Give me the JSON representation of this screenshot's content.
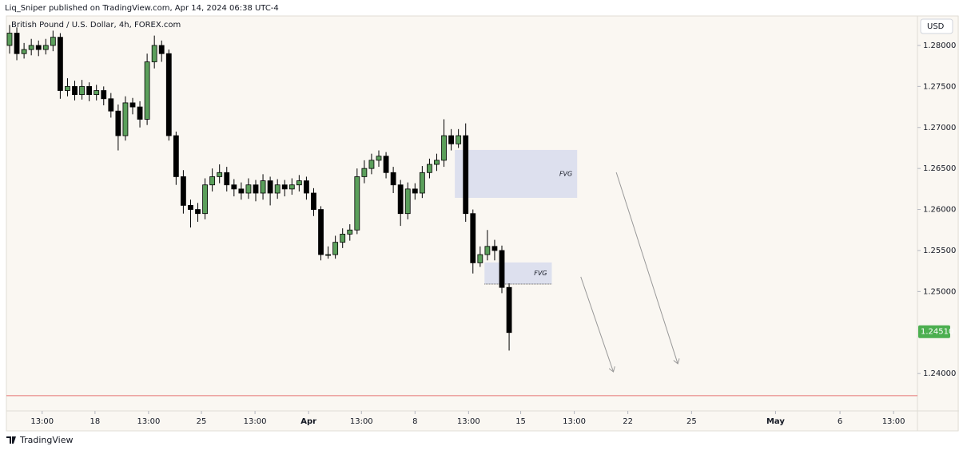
{
  "header": {
    "publisher": "Liq_Sniper published on TradingView.com, Apr 14, 2024 06:38 UTC-4",
    "brand": "TradingView"
  },
  "chart_data": {
    "type": "candlestick",
    "title": "British Pound / U.S. Dollar, 4h, FOREX.com",
    "currency": "USD",
    "up_color": "#5b9f5b",
    "down_color": "#000000",
    "grid": false,
    "open": [
      1.28,
      1.2815,
      1.279,
      1.2795,
      1.28,
      1.2795,
      1.28,
      1.281,
      1.2745,
      1.275,
      1.274,
      1.275,
      1.274,
      1.2745,
      1.2735,
      1.272,
      1.269,
      1.273,
      1.2725,
      1.271,
      1.278,
      1.28,
      1.279,
      1.269,
      1.264,
      1.2605,
      1.26,
      1.2595,
      1.263,
      1.264,
      1.2645,
      1.263,
      1.2625,
      1.262,
      1.263,
      1.262,
      1.2635,
      1.262,
      1.263,
      1.2625,
      1.263,
      1.2635,
      1.262,
      1.26,
      1.2545,
      1.2545,
      1.256,
      1.257,
      1.2575,
      1.264,
      1.265,
      1.266,
      1.2665,
      1.2645,
      1.263,
      1.2595,
      1.2625,
      1.262,
      1.2645,
      1.2655,
      1.266,
      1.269,
      1.268,
      1.269,
      1.2595,
      1.2535,
      1.2545,
      1.2555,
      1.255,
      1.2505
    ],
    "high": [
      1.2825,
      1.2822,
      1.2803,
      1.2808,
      1.2806,
      1.2808,
      1.2818,
      1.2815,
      1.276,
      1.2757,
      1.2758,
      1.2755,
      1.2752,
      1.275,
      1.2742,
      1.2728,
      1.2738,
      1.2736,
      1.2732,
      1.279,
      1.2812,
      1.2806,
      1.2795,
      1.2695,
      1.2648,
      1.2612,
      1.2608,
      1.2638,
      1.265,
      1.2655,
      1.2652,
      1.2637,
      1.2633,
      1.2638,
      1.2636,
      1.2643,
      1.264,
      1.2637,
      1.2636,
      1.2638,
      1.2642,
      1.264,
      1.2626,
      1.2604,
      1.2555,
      1.2568,
      1.2577,
      1.2582,
      1.265,
      1.266,
      1.2668,
      1.2672,
      1.267,
      1.2652,
      1.2636,
      1.2633,
      1.2632,
      1.2653,
      1.2662,
      1.2668,
      1.271,
      1.2698,
      1.2698,
      1.2705,
      1.26,
      1.2555,
      1.2575,
      1.2563,
      1.2556,
      1.251
    ],
    "low": [
      1.279,
      1.2782,
      1.2784,
      1.2788,
      1.2787,
      1.2789,
      1.2793,
      1.2735,
      1.2738,
      1.2733,
      1.2734,
      1.2732,
      1.2733,
      1.2727,
      1.2712,
      1.2672,
      1.2684,
      1.2716,
      1.27,
      1.2703,
      1.2772,
      1.278,
      1.2684,
      1.263,
      1.2595,
      1.2578,
      1.2585,
      1.2588,
      1.2622,
      1.2632,
      1.2622,
      1.2616,
      1.2612,
      1.2613,
      1.261,
      1.2612,
      1.2605,
      1.2613,
      1.2616,
      1.2618,
      1.2622,
      1.2612,
      1.2592,
      1.2538,
      1.254,
      1.254,
      1.2553,
      1.2562,
      1.257,
      1.2632,
      1.2643,
      1.2652,
      1.2638,
      1.262,
      1.258,
      1.2588,
      1.2612,
      1.2614,
      1.2638,
      1.2647,
      1.2652,
      1.2672,
      1.2675,
      1.2585,
      1.2522,
      1.253,
      1.2538,
      1.2538,
      1.2498,
      1.2428
    ],
    "close": [
      1.2815,
      1.279,
      1.2795,
      1.28,
      1.2795,
      1.28,
      1.281,
      1.2745,
      1.275,
      1.274,
      1.275,
      1.274,
      1.2745,
      1.2735,
      1.272,
      1.269,
      1.273,
      1.2725,
      1.271,
      1.278,
      1.28,
      1.279,
      1.269,
      1.264,
      1.2605,
      1.26,
      1.2595,
      1.263,
      1.264,
      1.2645,
      1.263,
      1.2625,
      1.262,
      1.263,
      1.262,
      1.2635,
      1.262,
      1.263,
      1.2625,
      1.263,
      1.2635,
      1.262,
      1.26,
      1.2545,
      1.2545,
      1.256,
      1.257,
      1.2575,
      1.264,
      1.265,
      1.266,
      1.2665,
      1.2645,
      1.263,
      1.2595,
      1.2625,
      1.262,
      1.2645,
      1.2655,
      1.266,
      1.269,
      1.268,
      1.269,
      1.2595,
      1.2535,
      1.2545,
      1.2555,
      1.255,
      1.2505,
      1.245
    ],
    "xlim": [
      -0.44,
      125.4
    ],
    "xticks": [
      {
        "value": 4.5,
        "label": "13:00"
      },
      {
        "value": 11.8,
        "label": "18"
      },
      {
        "value": 19.2,
        "label": "13:00"
      },
      {
        "value": 26.5,
        "label": "25"
      },
      {
        "value": 33.9,
        "label": "13:00"
      },
      {
        "value": 41.3,
        "label": "Apr"
      },
      {
        "value": 48.6,
        "label": "13:00"
      },
      {
        "value": 56.0,
        "label": "8"
      },
      {
        "value": 63.4,
        "label": "13:00"
      },
      {
        "value": 70.6,
        "label": "15"
      },
      {
        "value": 78.0,
        "label": "13:00"
      },
      {
        "value": 85.4,
        "label": "22"
      },
      {
        "value": 94.2,
        "label": "25"
      },
      {
        "value": 105.8,
        "label": "May"
      },
      {
        "value": 114.7,
        "label": "6"
      },
      {
        "value": 122.1,
        "label": "13:00"
      }
    ],
    "ylim": [
      1.23593,
      1.2834
    ],
    "yticks": [
      {
        "value": 1.28,
        "label": "1.28000"
      },
      {
        "value": 1.275,
        "label": "1.27500"
      },
      {
        "value": 1.27,
        "label": "1.27000"
      },
      {
        "value": 1.265,
        "label": "1.26500"
      },
      {
        "value": 1.26,
        "label": "1.26000"
      },
      {
        "value": 1.255,
        "label": "1.25500"
      },
      {
        "value": 1.25,
        "label": "1.25000"
      },
      {
        "value": 1.24,
        "label": "1.24000"
      }
    ],
    "last_price": {
      "value": 1.2451,
      "label": "1.24510",
      "color": "#4caf50"
    },
    "zones": [
      {
        "label": "FVG",
        "x": [
          61.5,
          78.4
        ],
        "y": [
          1.26726,
          1.26142
        ],
        "color": "#dde0ee"
      },
      {
        "label": "FVG",
        "x": [
          65.6,
          74.9
        ],
        "y": [
          1.25354,
          1.25091
        ],
        "color": "#dde0ee"
      }
    ],
    "level": {
      "value": 1.2373,
      "color": "#e57373"
    },
    "arrows": [
      {
        "x": [
          78.9,
          83.4
        ],
        "y": [
          1.25179,
          1.24021
        ]
      },
      {
        "x": [
          83.8,
          92.3
        ],
        "y": [
          1.26453,
          1.24119
        ]
      }
    ]
  }
}
